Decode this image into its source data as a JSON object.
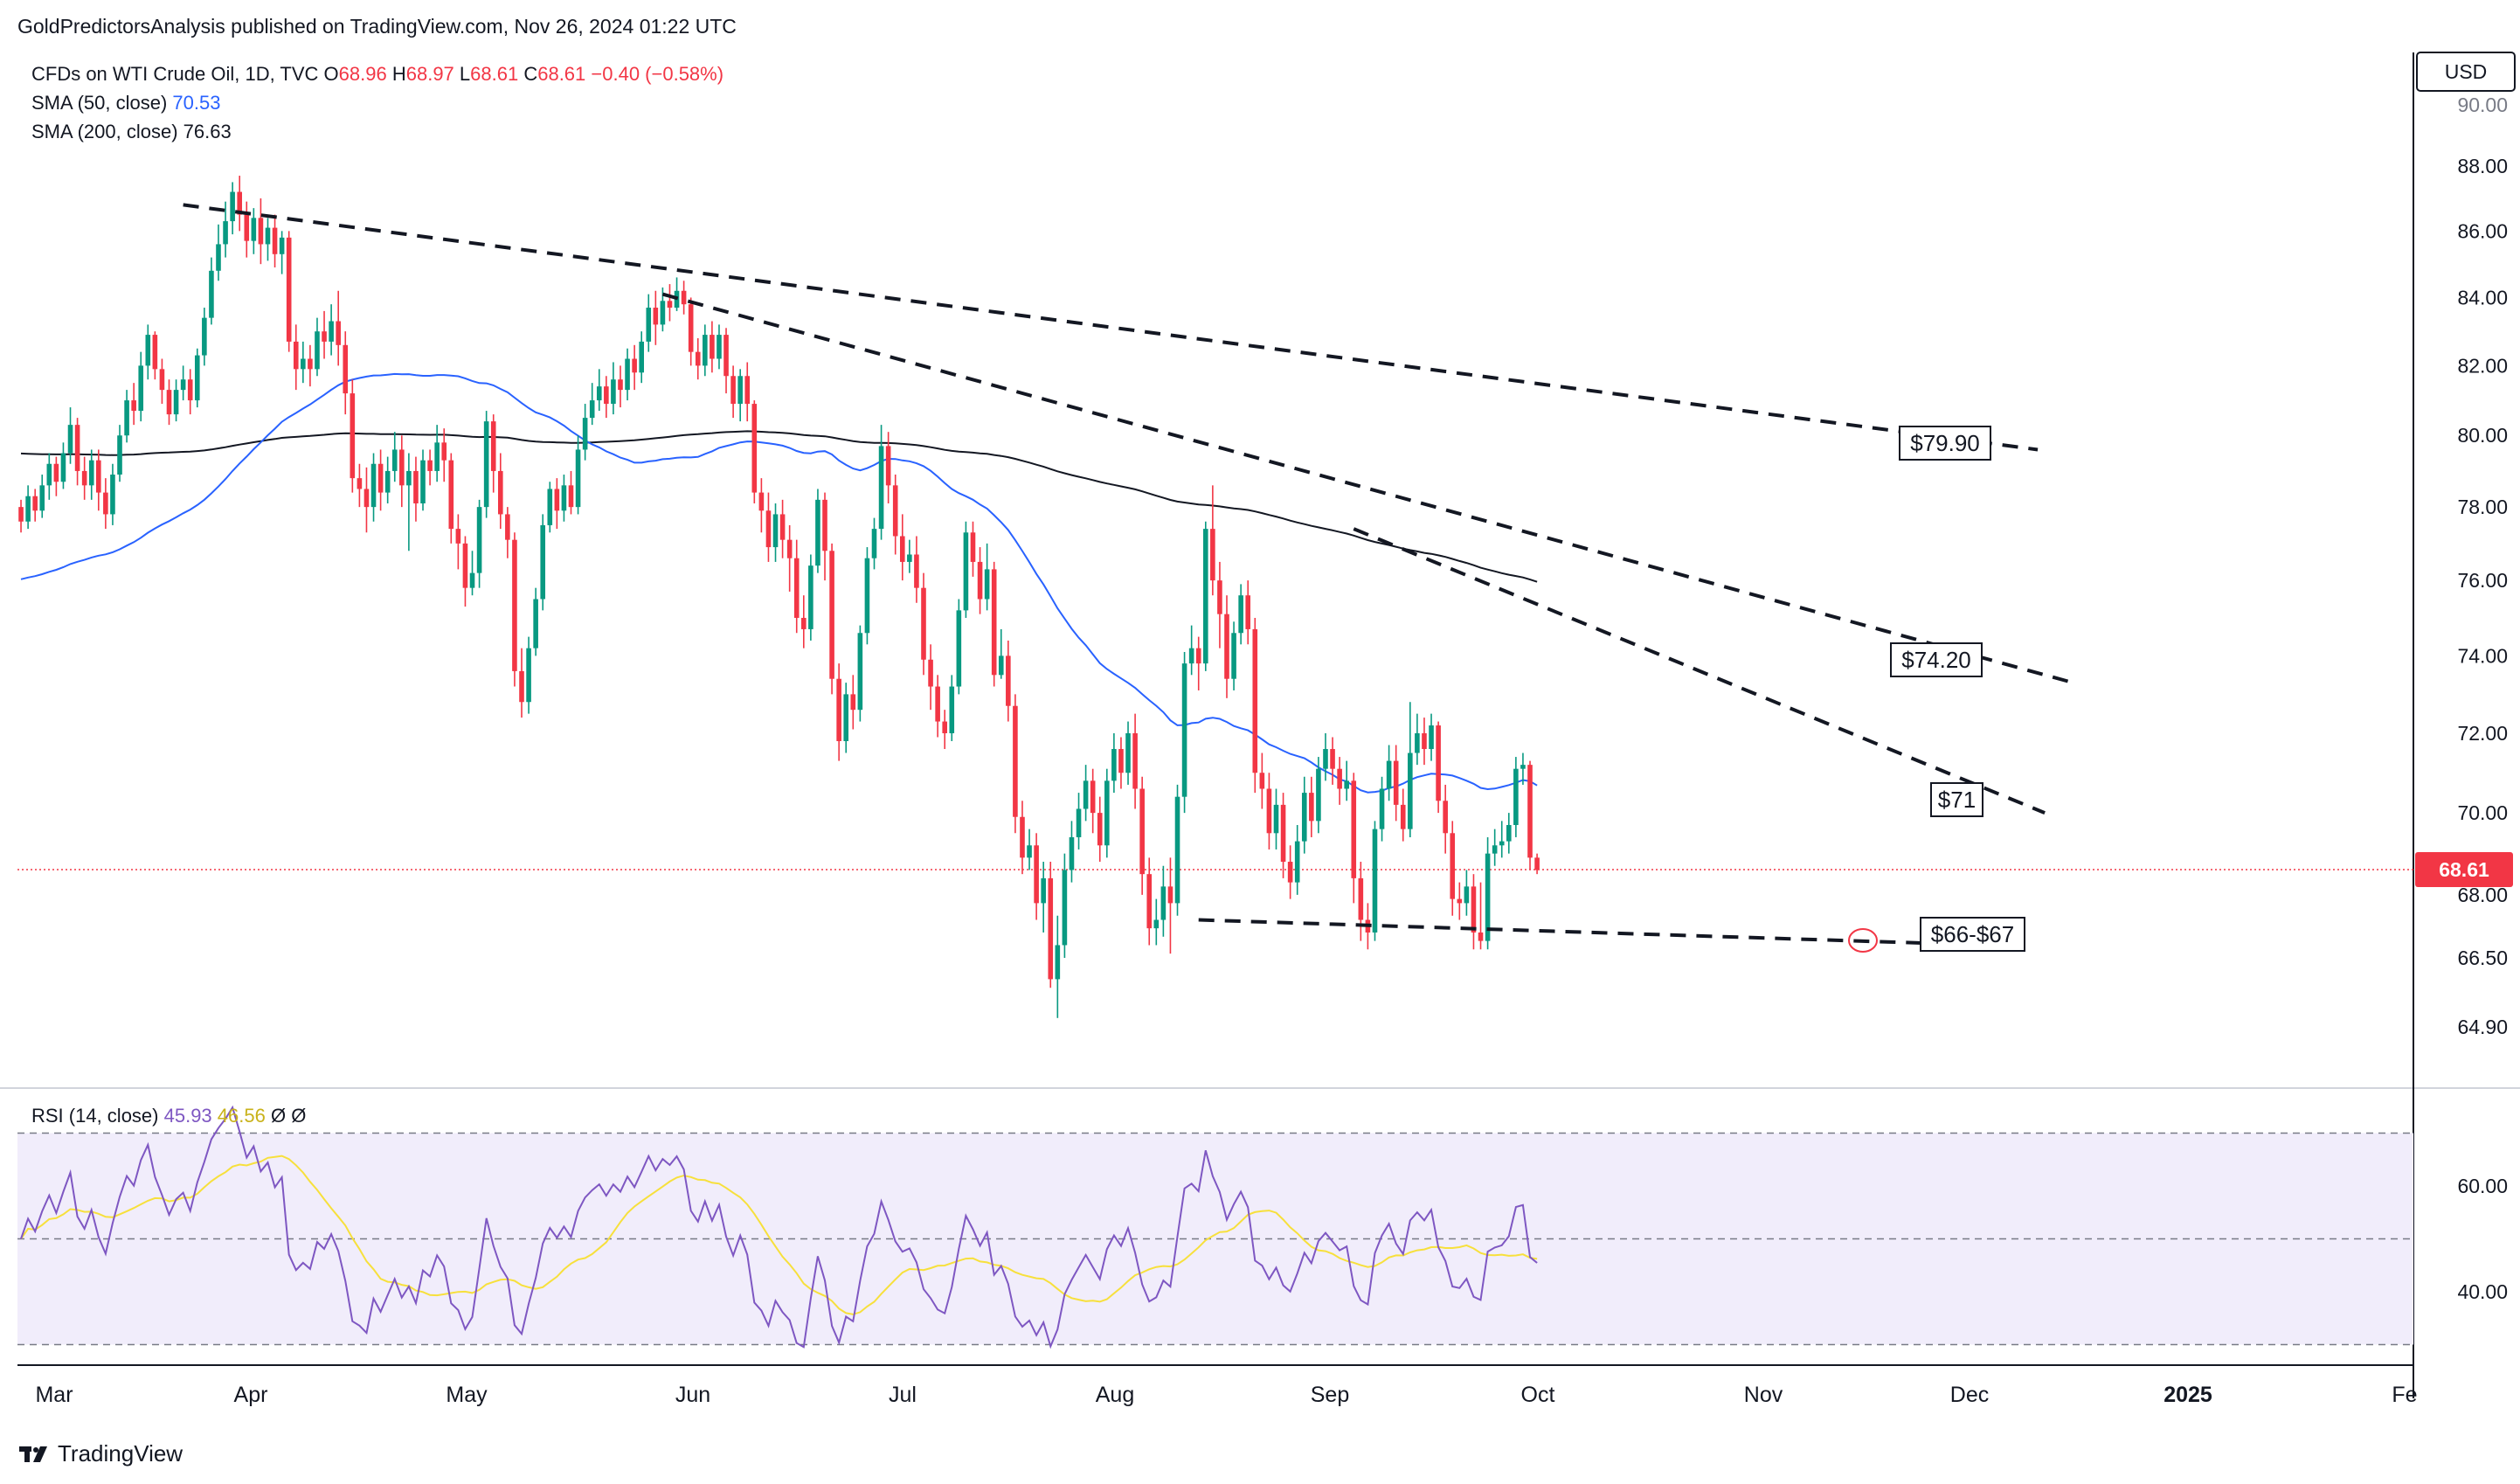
{
  "publish_line": "GoldPredictorsAnalysis published on TradingView.com, Nov 26, 2024 01:22 UTC",
  "footer_brand": "TradingView",
  "currency": "USD",
  "legend": {
    "symbol": "CFDs on WTI Crude Oil, 1D, TVC",
    "open_label": "O",
    "open": "68.96",
    "high_label": "H",
    "high": "68.97",
    "low_label": "L",
    "low": "68.61",
    "close_label": "C",
    "close": "68.61",
    "change": "−0.40 (−0.58%)",
    "sma50_label": "SMA (50, close)",
    "sma50_value": "70.53",
    "sma200_label": "SMA (200, close)",
    "sma200_value": "76.63"
  },
  "rsi_legend": {
    "label": "RSI (14, close)",
    "value": "45.93",
    "ma_value": "46.56",
    "extra1": "Ø",
    "extra2": "Ø"
  },
  "colors": {
    "up": "#089981",
    "down": "#f23645",
    "sma50": "#2962ff",
    "sma200": "#131722",
    "rsi": "#7e57c2",
    "rsi_ma": "#f7e03c",
    "rsi_band": "#f1edfb",
    "price_tag": "#f23645"
  },
  "chart_data": {
    "type": "candlestick",
    "price_axis": {
      "ticks": [
        "88.00",
        "86.00",
        "84.00",
        "82.00",
        "80.00",
        "78.00",
        "76.00",
        "74.00",
        "72.00",
        "70.00",
        "68.00",
        "66.50",
        "64.90"
      ],
      "top_partial": "90.00",
      "scale": "log"
    },
    "current_price": "68.61",
    "time_axis": [
      "Mar",
      "Apr",
      "May",
      "Jun",
      "Jul",
      "Aug",
      "Sep",
      "Oct",
      "Nov",
      "Dec",
      "2025",
      "Fe"
    ],
    "annotations": [
      "$79.90",
      "$74.20",
      "$71",
      "$66-$67"
    ],
    "rsi_axis": [
      "60.00",
      "40.00"
    ],
    "rsi_levels": [
      70,
      50,
      30
    ],
    "candles": [
      [
        78.0,
        77.6,
        78.2,
        77.3
      ],
      [
        77.6,
        78.3,
        78.6,
        77.4
      ],
      [
        78.3,
        77.9,
        78.5,
        77.6
      ],
      [
        77.9,
        78.6,
        78.9,
        77.7
      ],
      [
        78.6,
        79.2,
        79.5,
        78.2
      ],
      [
        79.2,
        78.7,
        79.4,
        78.3
      ],
      [
        78.7,
        79.5,
        79.8,
        78.5
      ],
      [
        79.5,
        80.3,
        80.8,
        79.2
      ],
      [
        80.3,
        79.0,
        80.5,
        78.6
      ],
      [
        79.0,
        78.6,
        79.4,
        78.2
      ],
      [
        78.6,
        79.3,
        79.6,
        78.2
      ],
      [
        79.3,
        78.4,
        79.6,
        77.9
      ],
      [
        78.4,
        77.8,
        78.8,
        77.4
      ],
      [
        77.8,
        78.9,
        79.2,
        77.5
      ],
      [
        78.9,
        80.0,
        80.3,
        78.7
      ],
      [
        80.0,
        81.0,
        81.3,
        79.8
      ],
      [
        81.0,
        80.7,
        81.5,
        80.3
      ],
      [
        80.7,
        82.0,
        82.4,
        80.4
      ],
      [
        82.0,
        82.9,
        83.2,
        81.6
      ],
      [
        82.9,
        81.9,
        83.0,
        81.6
      ],
      [
        81.9,
        81.3,
        82.2,
        80.9
      ],
      [
        81.3,
        80.6,
        81.6,
        80.3
      ],
      [
        80.6,
        81.3,
        81.6,
        80.4
      ],
      [
        81.3,
        81.6,
        82.0,
        81.0
      ],
      [
        81.6,
        81.0,
        81.9,
        80.6
      ],
      [
        81.0,
        82.3,
        82.5,
        80.8
      ],
      [
        82.3,
        83.4,
        83.7,
        82.0
      ],
      [
        83.4,
        84.8,
        85.2,
        83.2
      ],
      [
        84.8,
        85.6,
        86.2,
        84.5
      ],
      [
        85.6,
        86.3,
        86.9,
        85.2
      ],
      [
        86.3,
        87.2,
        87.5,
        85.9
      ],
      [
        87.2,
        86.5,
        87.7,
        86.0
      ],
      [
        86.5,
        85.7,
        86.9,
        85.2
      ],
      [
        85.7,
        86.4,
        86.7,
        85.3
      ],
      [
        86.4,
        85.6,
        87.0,
        85.0
      ],
      [
        85.6,
        86.1,
        86.4,
        85.1
      ],
      [
        86.1,
        85.3,
        86.5,
        84.9
      ],
      [
        85.3,
        85.8,
        86.0,
        84.7
      ],
      [
        85.8,
        82.7,
        86.0,
        82.4
      ],
      [
        82.7,
        81.9,
        83.2,
        81.3
      ],
      [
        81.9,
        82.2,
        82.7,
        81.5
      ],
      [
        82.2,
        81.9,
        82.6,
        81.4
      ],
      [
        81.9,
        83.0,
        83.4,
        81.7
      ],
      [
        83.0,
        82.7,
        83.6,
        82.2
      ],
      [
        82.7,
        83.3,
        83.8,
        82.3
      ],
      [
        83.3,
        82.6,
        84.2,
        82.0
      ],
      [
        82.6,
        81.2,
        83.0,
        80.6
      ],
      [
        81.2,
        78.8,
        81.6,
        78.4
      ],
      [
        78.8,
        78.5,
        79.2,
        78.0
      ],
      [
        78.5,
        78.0,
        79.1,
        77.3
      ],
      [
        78.0,
        79.2,
        79.5,
        77.6
      ],
      [
        79.2,
        78.4,
        79.6,
        77.9
      ],
      [
        78.4,
        79.0,
        79.4,
        78.1
      ],
      [
        79.0,
        79.6,
        80.1,
        78.7
      ],
      [
        79.6,
        78.6,
        80.0,
        78.0
      ],
      [
        78.6,
        79.0,
        79.5,
        76.8
      ],
      [
        79.0,
        78.1,
        79.4,
        77.6
      ],
      [
        78.1,
        79.3,
        79.6,
        77.9
      ],
      [
        79.3,
        79.0,
        79.6,
        78.6
      ],
      [
        79.0,
        79.8,
        80.3,
        78.7
      ],
      [
        79.8,
        79.3,
        80.2,
        78.7
      ],
      [
        79.3,
        77.4,
        79.5,
        77.0
      ],
      [
        77.4,
        77.0,
        77.8,
        76.3
      ],
      [
        77.0,
        75.8,
        77.2,
        75.3
      ],
      [
        75.8,
        76.2,
        76.8,
        75.6
      ],
      [
        76.2,
        78.0,
        78.2,
        75.8
      ],
      [
        78.0,
        80.4,
        80.7,
        77.7
      ],
      [
        80.4,
        79.0,
        80.6,
        78.4
      ],
      [
        79.0,
        77.8,
        79.5,
        77.4
      ],
      [
        77.8,
        77.1,
        78.0,
        76.6
      ],
      [
        77.1,
        73.6,
        77.3,
        73.2
      ],
      [
        73.6,
        72.8,
        74.2,
        72.4
      ],
      [
        72.8,
        74.2,
        74.5,
        72.5
      ],
      [
        74.2,
        75.5,
        75.8,
        74.0
      ],
      [
        75.5,
        77.5,
        77.8,
        75.2
      ],
      [
        77.5,
        78.5,
        78.7,
        77.3
      ],
      [
        78.5,
        77.9,
        78.8,
        77.4
      ],
      [
        77.9,
        78.6,
        78.9,
        77.6
      ],
      [
        78.6,
        78.0,
        79.0,
        77.8
      ],
      [
        78.0,
        79.6,
        80.0,
        77.8
      ],
      [
        79.6,
        80.5,
        80.9,
        79.3
      ],
      [
        80.5,
        81.0,
        81.5,
        80.3
      ],
      [
        81.0,
        81.4,
        81.9,
        80.7
      ],
      [
        81.4,
        80.9,
        81.7,
        80.5
      ],
      [
        80.9,
        81.6,
        82.1,
        80.6
      ],
      [
        81.6,
        81.3,
        82.0,
        80.8
      ],
      [
        81.3,
        82.2,
        82.5,
        81.0
      ],
      [
        82.2,
        81.8,
        82.6,
        81.3
      ],
      [
        81.8,
        82.7,
        83.0,
        81.5
      ],
      [
        82.7,
        83.7,
        84.1,
        82.4
      ],
      [
        83.7,
        83.2,
        84.2,
        82.6
      ],
      [
        83.2,
        83.9,
        84.3,
        83.0
      ],
      [
        83.9,
        83.7,
        84.4,
        83.3
      ],
      [
        83.7,
        84.2,
        84.6,
        83.6
      ],
      [
        84.2,
        83.8,
        84.5,
        83.5
      ],
      [
        83.8,
        82.4,
        84.0,
        82.0
      ],
      [
        82.4,
        82.0,
        82.8,
        81.6
      ],
      [
        82.0,
        82.9,
        83.2,
        81.7
      ],
      [
        82.9,
        82.2,
        83.3,
        81.8
      ],
      [
        82.2,
        82.9,
        83.2,
        81.9
      ],
      [
        82.9,
        81.7,
        83.1,
        81.2
      ],
      [
        81.7,
        80.9,
        82.0,
        80.5
      ],
      [
        80.9,
        81.7,
        81.9,
        80.4
      ],
      [
        81.7,
        80.9,
        82.1,
        80.4
      ],
      [
        80.9,
        78.4,
        81.0,
        78.1
      ],
      [
        78.4,
        77.9,
        78.8,
        77.3
      ],
      [
        77.9,
        76.9,
        78.4,
        76.5
      ],
      [
        76.9,
        77.8,
        78.1,
        76.5
      ],
      [
        77.8,
        77.1,
        78.2,
        76.6
      ],
      [
        77.1,
        76.6,
        77.5,
        75.7
      ],
      [
        76.6,
        75.0,
        77.1,
        74.6
      ],
      [
        75.0,
        74.7,
        75.6,
        74.2
      ],
      [
        74.7,
        76.4,
        76.7,
        74.4
      ],
      [
        76.4,
        78.2,
        78.5,
        76.2
      ],
      [
        78.2,
        76.8,
        78.4,
        76.0
      ],
      [
        76.8,
        73.4,
        77.0,
        73.0
      ],
      [
        73.4,
        71.8,
        73.8,
        71.3
      ],
      [
        71.8,
        73.0,
        73.3,
        71.5
      ],
      [
        73.0,
        72.6,
        73.5,
        72.1
      ],
      [
        72.6,
        74.6,
        74.8,
        72.3
      ],
      [
        74.6,
        76.6,
        76.9,
        74.3
      ],
      [
        76.6,
        77.4,
        77.7,
        76.3
      ],
      [
        77.4,
        79.7,
        80.3,
        77.1
      ],
      [
        79.7,
        78.6,
        80.1,
        78.1
      ],
      [
        78.6,
        77.2,
        78.9,
        76.7
      ],
      [
        77.2,
        76.5,
        77.8,
        76.0
      ],
      [
        76.5,
        76.7,
        77.1,
        76.2
      ],
      [
        76.7,
        75.8,
        77.2,
        75.4
      ],
      [
        75.8,
        73.9,
        76.2,
        73.5
      ],
      [
        73.9,
        73.2,
        74.3,
        72.6
      ],
      [
        73.2,
        72.3,
        73.5,
        71.9
      ],
      [
        72.3,
        72.0,
        72.6,
        71.6
      ],
      [
        72.0,
        73.2,
        73.5,
        71.8
      ],
      [
        73.2,
        75.2,
        75.5,
        73.0
      ],
      [
        75.2,
        77.3,
        77.6,
        75.0
      ],
      [
        77.3,
        76.5,
        77.6,
        76.1
      ],
      [
        76.5,
        75.5,
        76.9,
        75.1
      ],
      [
        75.5,
        76.3,
        77.0,
        75.2
      ],
      [
        76.3,
        73.5,
        76.5,
        73.2
      ],
      [
        73.5,
        74.0,
        74.7,
        73.4
      ],
      [
        74.0,
        72.7,
        74.4,
        72.3
      ],
      [
        72.7,
        69.9,
        73.0,
        69.5
      ],
      [
        69.9,
        68.9,
        70.3,
        68.5
      ],
      [
        68.9,
        69.2,
        69.6,
        68.6
      ],
      [
        69.2,
        67.8,
        69.5,
        67.4
      ],
      [
        67.8,
        68.4,
        68.8,
        67.1
      ],
      [
        68.4,
        66.0,
        68.8,
        65.8
      ],
      [
        66.0,
        66.8,
        67.5,
        65.1
      ],
      [
        66.8,
        68.6,
        69.0,
        66.5
      ],
      [
        68.6,
        69.4,
        69.8,
        68.3
      ],
      [
        69.4,
        70.1,
        70.5,
        69.1
      ],
      [
        70.1,
        70.8,
        71.2,
        69.8
      ],
      [
        70.8,
        70.0,
        71.1,
        69.5
      ],
      [
        70.0,
        69.2,
        70.4,
        68.8
      ],
      [
        69.2,
        70.8,
        71.1,
        68.9
      ],
      [
        70.8,
        71.6,
        72.0,
        70.5
      ],
      [
        71.6,
        71.0,
        71.9,
        70.6
      ],
      [
        71.0,
        72.0,
        72.3,
        70.7
      ],
      [
        72.0,
        70.6,
        72.5,
        70.1
      ],
      [
        70.6,
        68.5,
        70.9,
        68.0
      ],
      [
        68.5,
        67.2,
        68.9,
        66.8
      ],
      [
        67.2,
        67.4,
        67.9,
        66.8
      ],
      [
        67.4,
        68.2,
        68.7,
        67.0
      ],
      [
        68.2,
        67.8,
        68.9,
        66.6
      ],
      [
        67.8,
        70.4,
        70.7,
        67.5
      ],
      [
        70.4,
        73.8,
        74.1,
        70.0
      ],
      [
        73.8,
        74.2,
        74.8,
        73.5
      ],
      [
        74.2,
        73.8,
        74.5,
        73.1
      ],
      [
        73.8,
        77.4,
        77.6,
        73.6
      ],
      [
        77.4,
        76.0,
        78.6,
        75.6
      ],
      [
        76.0,
        75.1,
        76.5,
        74.2
      ],
      [
        75.1,
        73.4,
        75.6,
        72.9
      ],
      [
        73.4,
        74.6,
        74.9,
        73.1
      ],
      [
        74.6,
        75.6,
        75.9,
        74.3
      ],
      [
        75.6,
        74.7,
        76.0,
        74.3
      ],
      [
        74.7,
        71.0,
        75.0,
        70.5
      ],
      [
        71.0,
        70.6,
        71.5,
        70.1
      ],
      [
        70.6,
        69.5,
        71.0,
        69.1
      ],
      [
        69.5,
        70.2,
        70.6,
        69.1
      ],
      [
        70.2,
        68.8,
        70.5,
        68.4
      ],
      [
        68.8,
        68.3,
        69.2,
        67.9
      ],
      [
        68.3,
        69.3,
        69.7,
        68.0
      ],
      [
        69.3,
        70.5,
        70.9,
        69.0
      ],
      [
        70.5,
        69.8,
        70.9,
        69.4
      ],
      [
        69.8,
        71.1,
        71.4,
        69.5
      ],
      [
        71.1,
        71.6,
        72.0,
        70.8
      ],
      [
        71.6,
        71.1,
        71.9,
        70.7
      ],
      [
        71.1,
        70.6,
        71.4,
        70.2
      ],
      [
        70.6,
        70.8,
        71.3,
        70.3
      ],
      [
        70.8,
        68.4,
        71.0,
        67.8
      ],
      [
        68.4,
        67.4,
        68.8,
        66.9
      ],
      [
        67.4,
        67.1,
        67.8,
        66.7
      ],
      [
        67.1,
        69.6,
        69.8,
        66.9
      ],
      [
        69.6,
        70.6,
        70.9,
        69.3
      ],
      [
        70.6,
        71.3,
        71.7,
        70.3
      ],
      [
        71.3,
        70.2,
        71.7,
        69.8
      ],
      [
        70.2,
        69.6,
        70.6,
        69.3
      ],
      [
        69.6,
        71.5,
        72.8,
        69.4
      ],
      [
        71.5,
        72.0,
        72.5,
        71.2
      ],
      [
        72.0,
        71.6,
        72.4,
        71.2
      ],
      [
        71.6,
        72.2,
        72.5,
        71.3
      ],
      [
        72.2,
        70.3,
        72.3,
        70.0
      ],
      [
        70.3,
        69.5,
        70.7,
        69.0
      ],
      [
        69.5,
        67.9,
        69.8,
        67.5
      ],
      [
        67.9,
        67.8,
        68.3,
        67.4
      ],
      [
        67.8,
        68.2,
        68.6,
        67.5
      ],
      [
        68.2,
        67.1,
        68.5,
        66.7
      ],
      [
        67.1,
        66.9,
        68.3,
        66.7
      ],
      [
        66.9,
        69.0,
        69.4,
        66.7
      ],
      [
        69.0,
        69.2,
        69.6,
        68.7
      ],
      [
        69.2,
        69.3,
        69.8,
        68.9
      ],
      [
        69.3,
        69.7,
        70.0,
        69.0
      ],
      [
        69.7,
        71.1,
        71.4,
        69.4
      ],
      [
        71.1,
        71.2,
        71.5,
        70.7
      ],
      [
        71.2,
        68.9,
        71.3,
        68.6
      ],
      [
        68.9,
        68.6,
        69.0,
        68.5
      ]
    ],
    "trendlines": [
      {
        "label": "$79.90",
        "from": [
          23,
          86.8
        ],
        "to": [
          286,
          79.6
        ]
      },
      {
        "label": "$74.20",
        "from": [
          91,
          84.1
        ],
        "to": [
          291,
          73.3
        ]
      },
      {
        "label": "$71",
        "from": [
          189,
          77.4
        ],
        "to": [
          287,
          70.0
        ]
      },
      {
        "label": "$66-$67",
        "from": [
          167,
          67.4
        ],
        "to": [
          279,
          66.8
        ]
      }
    ]
  }
}
